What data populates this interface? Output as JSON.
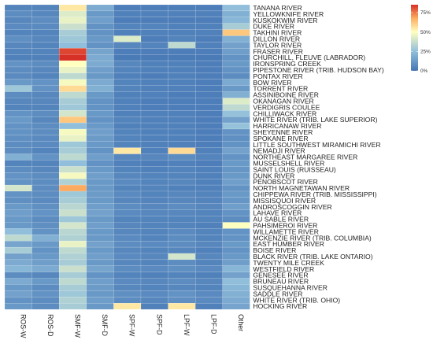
{
  "chart_data": {
    "type": "heatmap",
    "title": "",
    "xlabel": "",
    "ylabel": "",
    "columns": [
      "ROS-W",
      "ROS-D",
      "SMF-W",
      "SMF-D",
      "SPF-W",
      "SPF-D",
      "LPF-W",
      "LPF-D",
      "Other"
    ],
    "rows": [
      "TANANA RIVER",
      "YELLOWKNIFE RIVER",
      "KUSKOKWIM RIVER",
      "DUKE RIVER",
      "TAKHINI RIVER",
      "DILLON RIVER",
      "TAYLOR RIVER",
      "FRASER RIVER",
      "CHURCHILL, FLEUVE (LABRADOR)",
      "IRONSPRING CREEK",
      "PIPESTONE RIVER (TRIB. HUDSON BAY)",
      "PONTAX RIVER",
      "BOW RIVER",
      "TORRENT RIVER",
      "ASSINIBOINE RIVER",
      "OKANAGAN RIVER",
      "VERDIGRIS COULEE",
      "CHILLIWACK RIVER",
      "WHITE RIVER (TRIB. LAKE SUPERIOR)",
      "HARRICANAW RIVER",
      "SHEYENNE RIVER",
      "SPOKANE RIVER",
      "LITTLE SOUTHWEST MIRAMICHI RIVER",
      "NEMADJI RIVER",
      "NORTHEAST MARGAREE RIVER",
      "MUSSELSHELL RIVER",
      "SAINT LOUIS (RUISSEAU)",
      "DUNK RIVER",
      "PENOBSCOT RIVER",
      "NORTH MAGNETAWAN RIVER",
      "CHIPPEWA RIVER (TRIB. MISSISSIPPI)",
      "MISSISQUOI RIVER",
      "ANDROSCOGGIN RIVER",
      "LAHAVE RIVER",
      "AU SABLE RIVER",
      "PAHSIMEROI RIVER",
      "WILLAMETTE RIVER",
      "MCKENZIE RIVER (TRIB. COLUMBIA)",
      "EAST HUMBER RIVER",
      "BOISE RIVER",
      "BLACK RIVER (TRIB. LAKE ONTARIO)",
      "TWENTY MILE CREEK",
      "WESTFIELD RIVER",
      "GENESEE RIVER",
      "BRUNEAU RIVER",
      "SUSQUEHANNA RIVER",
      "SADDLE RIVER",
      "WHITE RIVER (TRIB. OHIO)",
      "HOCKING RIVER"
    ],
    "values": [
      [
        5,
        5,
        55,
        18,
        3,
        3,
        3,
        3,
        25
      ],
      [
        8,
        6,
        42,
        12,
        4,
        4,
        4,
        4,
        20
      ],
      [
        6,
        8,
        45,
        14,
        3,
        3,
        3,
        3,
        22
      ],
      [
        7,
        7,
        38,
        10,
        5,
        5,
        4,
        4,
        30
      ],
      [
        5,
        5,
        30,
        10,
        4,
        4,
        4,
        4,
        62
      ],
      [
        9,
        6,
        28,
        12,
        42,
        3,
        5,
        3,
        20
      ],
      [
        6,
        5,
        25,
        10,
        6,
        5,
        35,
        4,
        15
      ],
      [
        5,
        5,
        82,
        16,
        3,
        3,
        3,
        3,
        14
      ],
      [
        4,
        4,
        88,
        18,
        2,
        2,
        2,
        2,
        10
      ],
      [
        10,
        8,
        50,
        18,
        6,
        4,
        4,
        3,
        12
      ],
      [
        8,
        6,
        45,
        14,
        5,
        4,
        4,
        3,
        10
      ],
      [
        7,
        5,
        35,
        12,
        4,
        3,
        4,
        3,
        8
      ],
      [
        12,
        10,
        48,
        18,
        5,
        4,
        4,
        3,
        18
      ],
      [
        28,
        10,
        58,
        20,
        5,
        4,
        4,
        3,
        12
      ],
      [
        8,
        6,
        35,
        12,
        4,
        4,
        3,
        3,
        20
      ],
      [
        6,
        6,
        30,
        10,
        4,
        3,
        3,
        3,
        42
      ],
      [
        5,
        5,
        28,
        10,
        4,
        3,
        3,
        3,
        35
      ],
      [
        10,
        8,
        40,
        12,
        4,
        4,
        4,
        3,
        26
      ],
      [
        12,
        6,
        62,
        10,
        5,
        4,
        4,
        3,
        15
      ],
      [
        10,
        8,
        25,
        12,
        4,
        4,
        4,
        3,
        26
      ],
      [
        10,
        8,
        48,
        14,
        5,
        4,
        4,
        3,
        10
      ],
      [
        9,
        7,
        45,
        13,
        5,
        4,
        4,
        3,
        9
      ],
      [
        8,
        7,
        28,
        12,
        5,
        4,
        4,
        3,
        10
      ],
      [
        8,
        5,
        30,
        10,
        55,
        4,
        58,
        4,
        15
      ],
      [
        20,
        10,
        35,
        14,
        6,
        6,
        8,
        5,
        10
      ],
      [
        5,
        5,
        25,
        10,
        4,
        3,
        4,
        3,
        12
      ],
      [
        8,
        6,
        38,
        12,
        5,
        4,
        5,
        4,
        11
      ],
      [
        10,
        8,
        48,
        14,
        6,
        5,
        5,
        4,
        12
      ],
      [
        10,
        8,
        32,
        12,
        7,
        5,
        6,
        4,
        14
      ],
      [
        40,
        8,
        68,
        12,
        5,
        5,
        4,
        4,
        10
      ],
      [
        10,
        8,
        28,
        13,
        7,
        5,
        6,
        5,
        12
      ],
      [
        9,
        7,
        30,
        12,
        6,
        5,
        6,
        5,
        11
      ],
      [
        12,
        9,
        34,
        14,
        8,
        6,
        8,
        6,
        14
      ],
      [
        14,
        10,
        38,
        15,
        7,
        6,
        6,
        5,
        10
      ],
      [
        12,
        8,
        28,
        12,
        5,
        5,
        5,
        5,
        8
      ],
      [
        12,
        9,
        40,
        14,
        6,
        5,
        5,
        4,
        50
      ],
      [
        25,
        10,
        34,
        12,
        6,
        5,
        7,
        5,
        10
      ],
      [
        35,
        20,
        32,
        12,
        7,
        5,
        8,
        5,
        10
      ],
      [
        16,
        12,
        45,
        15,
        8,
        7,
        8,
        6,
        12
      ],
      [
        30,
        10,
        35,
        12,
        6,
        5,
        6,
        4,
        10
      ],
      [
        15,
        12,
        32,
        14,
        7,
        6,
        40,
        6,
        12
      ],
      [
        18,
        14,
        30,
        12,
        6,
        5,
        8,
        5,
        14
      ],
      [
        22,
        18,
        38,
        16,
        8,
        7,
        9,
        7,
        22
      ],
      [
        8,
        6,
        30,
        10,
        5,
        4,
        5,
        4,
        15
      ],
      [
        18,
        12,
        35,
        14,
        7,
        6,
        8,
        6,
        25
      ],
      [
        12,
        8,
        30,
        13,
        6,
        5,
        6,
        5,
        22
      ],
      [
        15,
        10,
        28,
        12,
        9,
        7,
        10,
        7,
        20
      ],
      [
        10,
        8,
        32,
        14,
        8,
        6,
        9,
        7,
        18
      ],
      [
        12,
        8,
        30,
        12,
        55,
        4,
        55,
        4,
        16
      ]
    ],
    "colorbar": {
      "min": 0,
      "max": 85,
      "ticks": [
        0,
        25,
        50,
        75
      ],
      "tick_labels": [
        "0%",
        "25%",
        "50%",
        "75%"
      ],
      "colors": [
        "#4575b4",
        "#91bfdb",
        "#ffffbf",
        "#fdae61",
        "#d73027"
      ]
    },
    "grid": true,
    "legend_placement": "top-right"
  }
}
